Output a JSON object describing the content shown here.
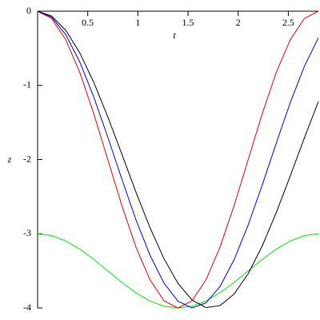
{
  "chart_data": {
    "type": "line",
    "xlabel": "t",
    "ylabel": "z",
    "x": [
      0,
      0.14,
      0.28,
      0.42,
      0.56,
      0.7,
      0.84,
      0.98,
      1.12,
      1.26,
      1.4,
      1.54,
      1.68,
      1.82,
      1.96,
      2.1,
      2.24,
      2.38,
      2.52,
      2.66,
      2.8
    ],
    "series": [
      {
        "color": "#00e000",
        "values": [
          -3,
          -3.024,
          -3.096,
          -3.206,
          -3.345,
          -3.5,
          -3.655,
          -3.794,
          -3.905,
          -3.976,
          -4,
          -3.976,
          -3.905,
          -3.794,
          -3.655,
          -3.5,
          -3.345,
          -3.206,
          -3.096,
          -3.024,
          -3
        ]
      },
      {
        "color": "#e00000",
        "values": [
          0,
          -0.098,
          -0.382,
          -0.824,
          -1.382,
          -2,
          -2.618,
          -3.176,
          -3.618,
          -3.902,
          -4,
          -3.902,
          -3.618,
          -3.176,
          -2.618,
          -2,
          -1.382,
          -0.824,
          -0.382,
          -0.098,
          0
        ]
      },
      {
        "color": "#0000e0",
        "values": [
          0,
          -0.08,
          -0.314,
          -0.682,
          -1.156,
          -1.697,
          -2.263,
          -2.808,
          -3.286,
          -3.664,
          -3.908,
          -4,
          -3.931,
          -3.708,
          -3.348,
          -2.88,
          -2.342,
          -1.778,
          -1.23,
          -0.744,
          -0.358
        ]
      },
      {
        "color": "#000000",
        "values": [
          0,
          -0.065,
          -0.256,
          -0.56,
          -0.958,
          -1.424,
          -1.927,
          -2.436,
          -2.914,
          -3.335,
          -3.668,
          -3.893,
          -3.995,
          -3.967,
          -3.811,
          -3.538,
          -3.163,
          -2.714,
          -2.218,
          -1.708,
          -1.217
        ]
      }
    ],
    "xlim": [
      0,
      2.8
    ],
    "ylim": [
      -4,
      0
    ],
    "xticks": [
      0.5,
      1,
      1.5,
      2,
      2.5
    ],
    "yticks": [
      0,
      -1,
      -2,
      -3,
      -4
    ]
  }
}
